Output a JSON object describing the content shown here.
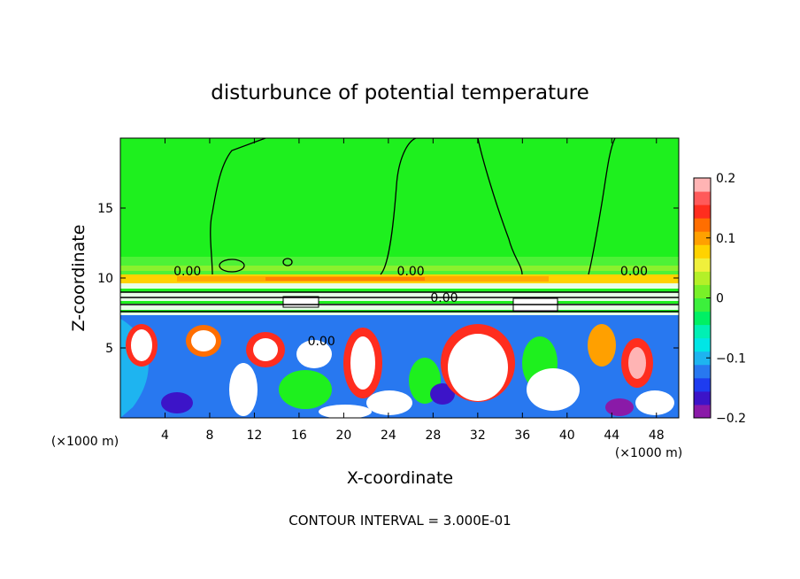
{
  "chart_data": {
    "type": "heatmap",
    "title": "disturbunce of potential temperature",
    "xlabel": "X-coordinate",
    "ylabel": "Z-coordinate",
    "xunit": "(×1000 m)",
    "zunit": "(×1000 m)",
    "footer": "CONTOUR INTERVAL = 3.000E-01",
    "xlim": [
      0,
      50
    ],
    "ylim": [
      0,
      20
    ],
    "xticks": [
      4,
      8,
      12,
      16,
      20,
      24,
      28,
      32,
      36,
      40,
      44,
      48
    ],
    "yticks": [
      5,
      10,
      15
    ],
    "colorbar": {
      "range": [
        -0.2,
        0.2
      ],
      "ticks": [
        {
          "value": 0.2,
          "label": "0.2"
        },
        {
          "value": 0.1,
          "label": "0.1"
        },
        {
          "value": 0,
          "label": "0"
        },
        {
          "value": -0.1,
          "label": "−0.1"
        },
        {
          "value": -0.2,
          "label": "−0.2"
        }
      ],
      "colors": [
        "#8a1aa8",
        "#3c14c8",
        "#1e3cf0",
        "#2878f0",
        "#1eb4f0",
        "#00e6e6",
        "#00f0b4",
        "#00f064",
        "#3cf03c",
        "#78f028",
        "#b4f028",
        "#f0f03c",
        "#ffd200",
        "#ffa000",
        "#ff6e00",
        "#ff2d1e",
        "#ff5a5a",
        "#ffb4b4"
      ]
    },
    "contour_labels": [
      {
        "x": 6,
        "z": 10.5,
        "text": "0.00"
      },
      {
        "x": 26,
        "z": 10.5,
        "text": "0.00"
      },
      {
        "x": 46,
        "z": 10.5,
        "text": "0.00"
      },
      {
        "x": 29,
        "z": 8.6,
        "text": "0.00"
      },
      {
        "x": 18,
        "z": 5.5,
        "text": "0.00"
      }
    ]
  }
}
